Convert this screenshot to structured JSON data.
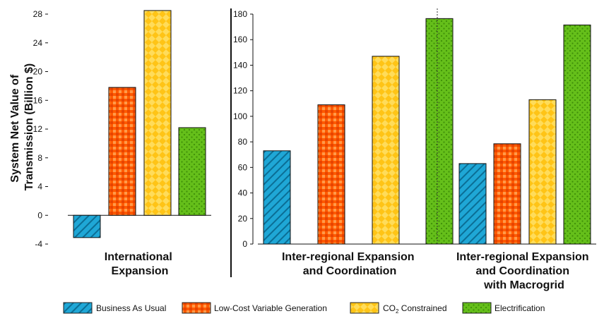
{
  "chart_data": {
    "type": "bar",
    "ylabel_lines": [
      "System Net Value of",
      "Transmission (Billion $)"
    ],
    "series": [
      {
        "name": "Business As Usual",
        "color": "#1fa7d6",
        "pattern": "diagonal-hatch"
      },
      {
        "name": "Low-Cost Variable Generation",
        "color": "#ff5a00",
        "pattern": "checker"
      },
      {
        "name": "CO2 Constrained",
        "color": "#ffc416",
        "pattern": "diamond"
      },
      {
        "name": "Electrification",
        "color": "#65bf1a",
        "pattern": "dots"
      }
    ],
    "panels": [
      {
        "group_label_lines": [
          "International",
          "Expansion"
        ],
        "ylim": [
          -4,
          28
        ],
        "yticks": [
          -4,
          0,
          4,
          8,
          12,
          16,
          20,
          24,
          28
        ],
        "values": [
          -3.1,
          17.8,
          28.5,
          12.2
        ]
      },
      {
        "group_label_lines": [
          "Inter-regional Expansion",
          "and Coordination"
        ],
        "ylim": [
          0,
          180
        ],
        "yticks": [
          0,
          20,
          40,
          60,
          80,
          100,
          120,
          140,
          160,
          180
        ],
        "values": [
          73,
          109,
          147,
          176.5
        ]
      },
      {
        "group_label_lines": [
          "Inter-regional Expansion",
          "and Coordination",
          "with Macrogrid"
        ],
        "ylim": [
          0,
          180
        ],
        "values": [
          63,
          78.5,
          113,
          171.5
        ]
      }
    ],
    "legend": {
      "position": "bottom",
      "co2_text": "CO",
      "co2_sub": "2",
      "co2_rest": " Constrained"
    }
  }
}
